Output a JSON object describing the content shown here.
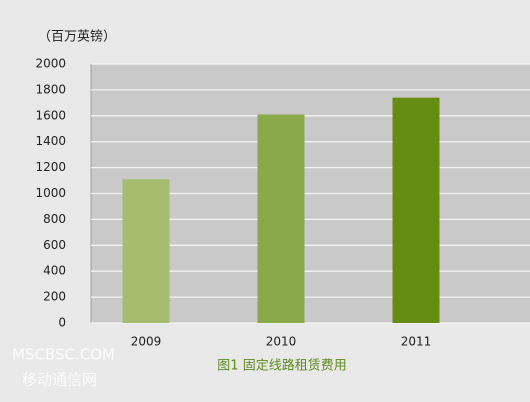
{
  "chart_data": {
    "type": "bar",
    "y_label": "（百万英镑）",
    "caption": "图1 固定线路租赁费用",
    "categories": [
      "2009",
      "2010",
      "2011"
    ],
    "values": [
      1110,
      1610,
      1740
    ],
    "colors": [
      "#a6bd6f",
      "#8aaa4a",
      "#668c14"
    ],
    "ylim": [
      0,
      2000
    ],
    "yticks": [
      0,
      200,
      400,
      600,
      800,
      1000,
      1200,
      1400,
      1600,
      1800,
      2000
    ],
    "grid": true
  },
  "watermark": [
    "MSCBSC.COM",
    "移动通信网"
  ]
}
